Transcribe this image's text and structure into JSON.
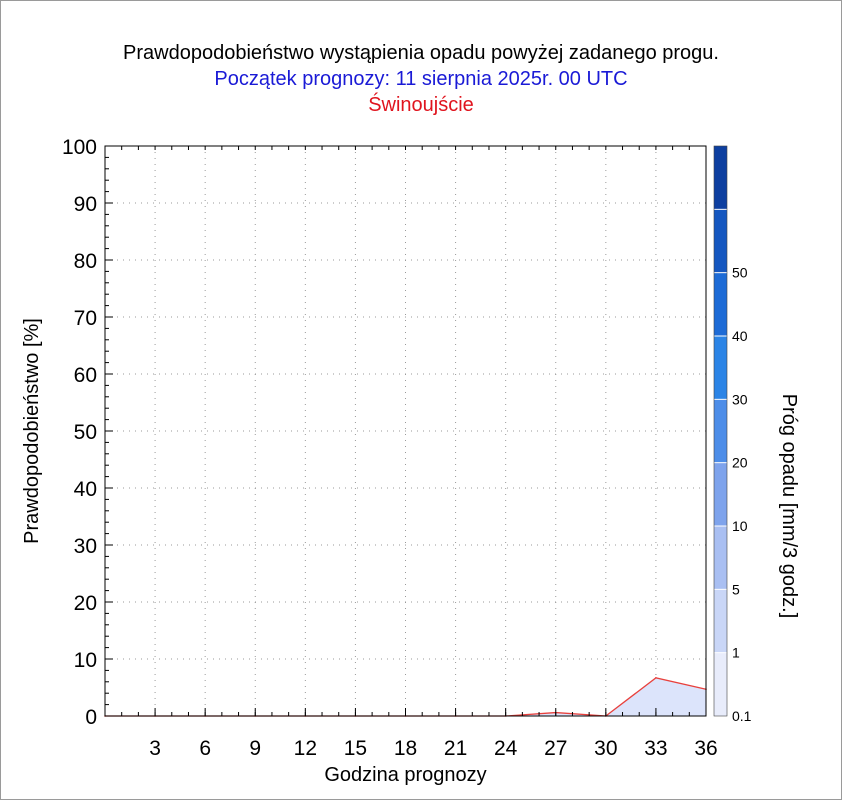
{
  "chart_data": {
    "type": "area",
    "title": "Prawdopodobieństwo wystąpienia opadu powyżej zadanego progu.",
    "subtitle": "Początek prognozy: 11 sierpnia 2025r. 00 UTC",
    "location": "Świnoujście",
    "xlabel": "Godzina prognozy",
    "ylabel": "Prawdopodobieństwo [%]",
    "xlim": [
      0,
      36
    ],
    "ylim": [
      0,
      100
    ],
    "x_ticks": [
      3,
      6,
      9,
      12,
      15,
      18,
      21,
      24,
      27,
      30,
      33,
      36
    ],
    "y_ticks": [
      0,
      10,
      20,
      30,
      40,
      50,
      60,
      70,
      80,
      90,
      100
    ],
    "grid": true,
    "series": [
      {
        "name": "0.1",
        "color": "#e8413d",
        "fill": "#dce4fb",
        "x": [
          0,
          3,
          6,
          9,
          12,
          15,
          18,
          21,
          24,
          27,
          30,
          33,
          36
        ],
        "values": [
          0,
          0,
          0,
          0,
          0,
          0,
          0,
          0,
          0,
          0.6,
          0,
          6.7,
          4.7
        ]
      }
    ],
    "colorbar": {
      "title": "Próg opadu [mm/3 godz.]",
      "labels": [
        "0.1",
        "1",
        "5",
        "10",
        "20",
        "30",
        "40",
        "50"
      ],
      "colors": [
        "#e8ecfb",
        "#c9d6f7",
        "#a9bff2",
        "#7ea3ec",
        "#4d8de8",
        "#2b84e6",
        "#1d6bd6",
        "#1557c0",
        "#0d3fa0"
      ]
    }
  }
}
